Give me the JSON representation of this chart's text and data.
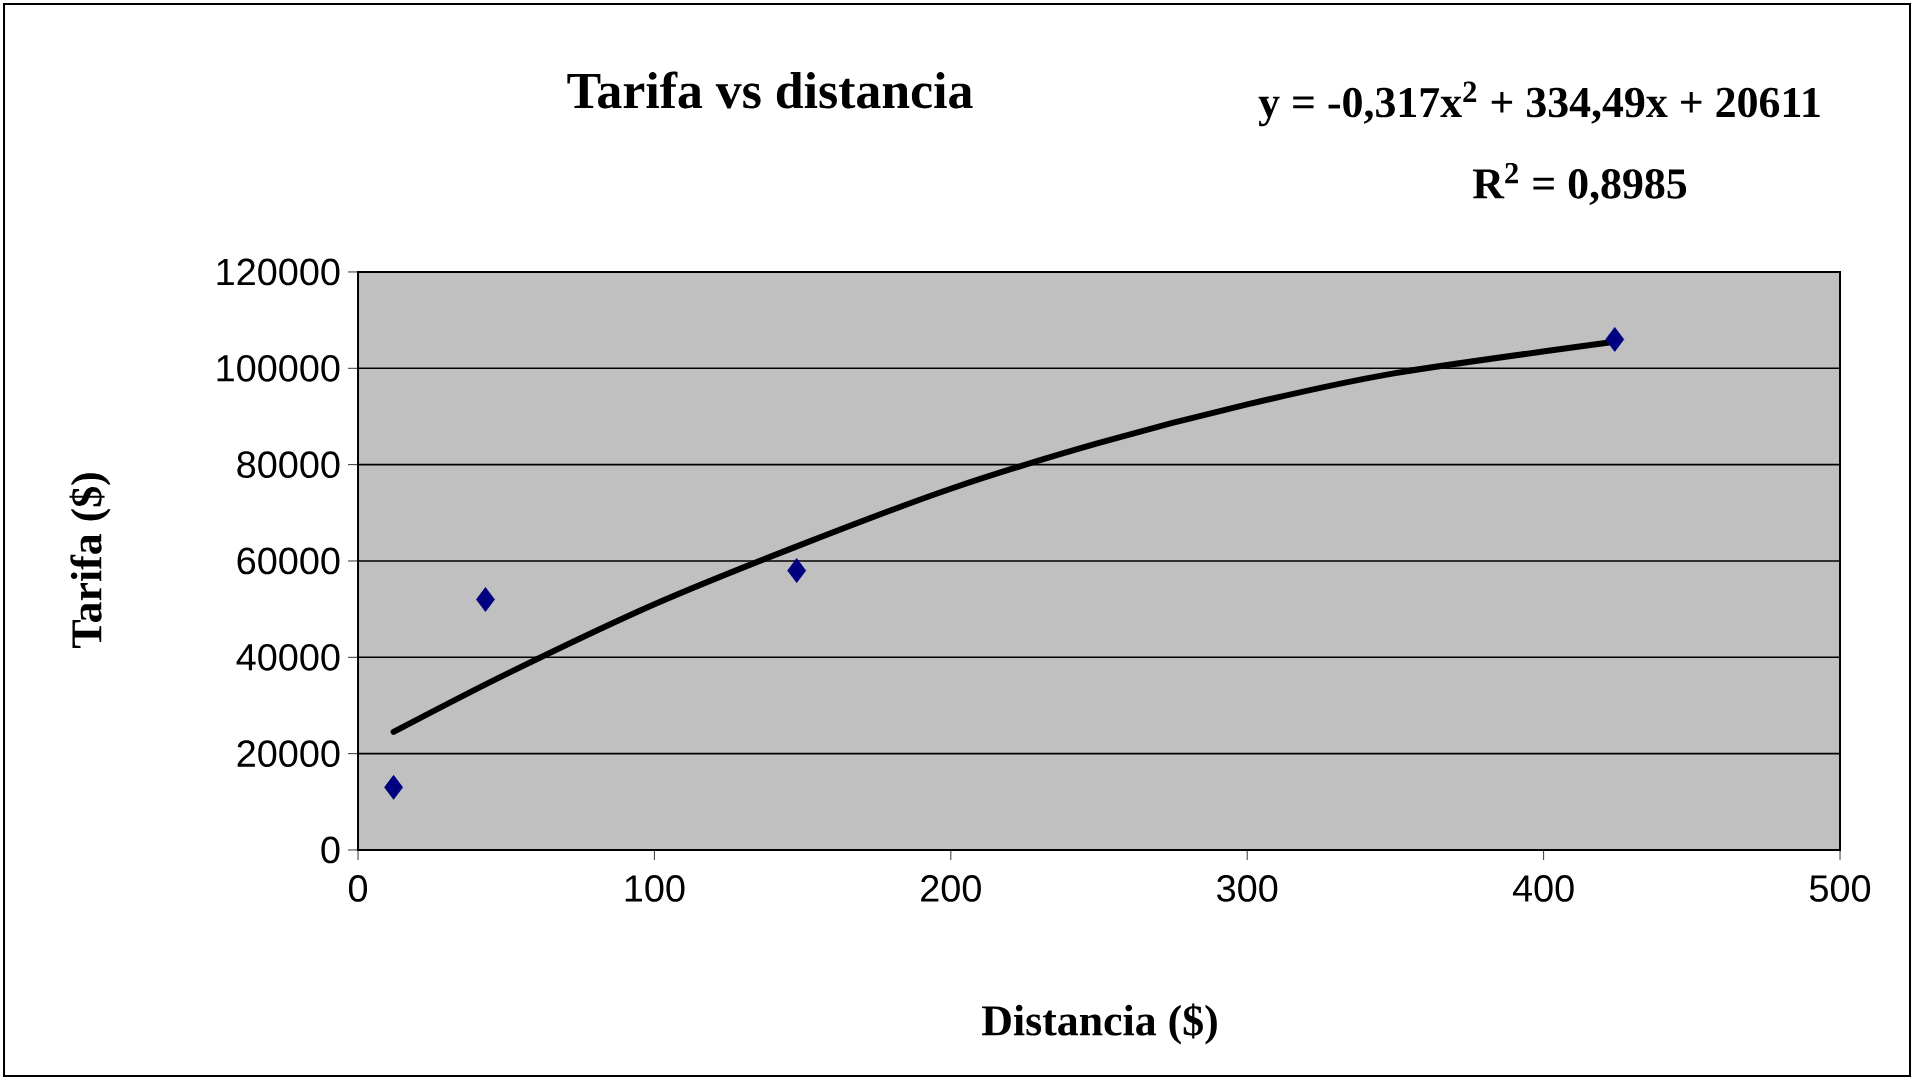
{
  "chart_data": {
    "type": "scatter",
    "title": "Tarifa vs distancia",
    "xlabel": "Distancia ($)",
    "ylabel": "Tarifa ($)",
    "annotations": [
      "y = -0,317x$^{2}$ + 334,49x + 20611",
      "R$^{2}$ = 0,8985"
    ],
    "series": [
      {
        "color": "#000080",
        "marker": "diamond",
        "x": [
          12,
          43,
          148,
          424
        ],
        "values": [
          13000,
          52000,
          58000,
          106000
        ]
      },
      {
        "type": "line",
        "color": "#000000",
        "marker": "none",
        "line_style": "solid",
        "x": [
          12,
          50,
          100,
          150,
          200,
          250,
          300,
          350,
          424
        ],
        "values": [
          24500,
          36500,
          51000,
          63500,
          75000,
          84500,
          92500,
          99000,
          105500
        ]
      }
    ],
    "xlim": [
      0,
      500
    ],
    "ylim": [
      0,
      120000
    ],
    "xticks": [
      0,
      100,
      200,
      300,
      400,
      500
    ],
    "yticks": [
      0,
      20000,
      40000,
      60000,
      80000,
      100000,
      120000
    ],
    "grid": "y"
  }
}
